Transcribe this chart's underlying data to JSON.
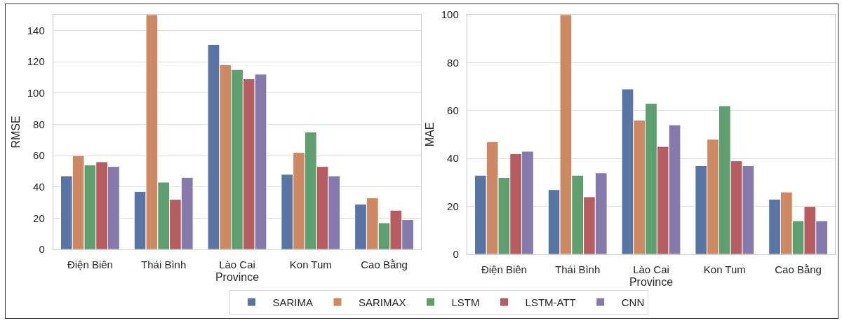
{
  "chart_data": [
    {
      "type": "bar",
      "xlabel": "Province",
      "ylabel": "RMSE",
      "categories": [
        "Điện Biên",
        "Thái Bình",
        "Lào Cai",
        "Kon Tum",
        "Cao Bằng"
      ],
      "series": [
        {
          "name": "SARIMA",
          "color": "#5975a4",
          "values": [
            47,
            37,
            131,
            48,
            29
          ]
        },
        {
          "name": "SARIMAX",
          "color": "#cc8963",
          "values": [
            60,
            150,
            118,
            62,
            33
          ]
        },
        {
          "name": "LSTM",
          "color": "#5f9e6e",
          "values": [
            54,
            43,
            115,
            75,
            17
          ]
        },
        {
          "name": "LSTM-ATT",
          "color": "#b55d60",
          "values": [
            56,
            32,
            109,
            53,
            25
          ]
        },
        {
          "name": "CNN",
          "color": "#857aab",
          "values": [
            53,
            46,
            112,
            47,
            19
          ]
        }
      ],
      "ylim": [
        0,
        150
      ],
      "yticks": [
        0,
        20,
        40,
        60,
        80,
        100,
        120,
        140
      ],
      "grid": "y",
      "legend": "bottom"
    },
    {
      "type": "bar",
      "xlabel": "Province",
      "ylabel": "MAE",
      "categories": [
        "Điện Biên",
        "Thái Bình",
        "Lào Cai",
        "Kon Tum",
        "Cao Bằng"
      ],
      "series": [
        {
          "color": "#5975a4",
          "values": [
            33,
            27,
            69,
            37,
            23
          ]
        },
        {
          "color": "#cc8963",
          "values": [
            47,
            100,
            56,
            48,
            26
          ]
        },
        {
          "color": "#5f9e6e",
          "values": [
            32,
            33,
            63,
            62,
            14
          ]
        },
        {
          "color": "#b55d60",
          "values": [
            42,
            24,
            45,
            39,
            20
          ]
        },
        {
          "color": "#857aab",
          "values": [
            43,
            34,
            54,
            37,
            14
          ]
        }
      ],
      "ylim": [
        0,
        100
      ],
      "yticks": [
        0,
        20,
        40,
        60,
        80,
        100
      ],
      "grid": "y"
    }
  ]
}
